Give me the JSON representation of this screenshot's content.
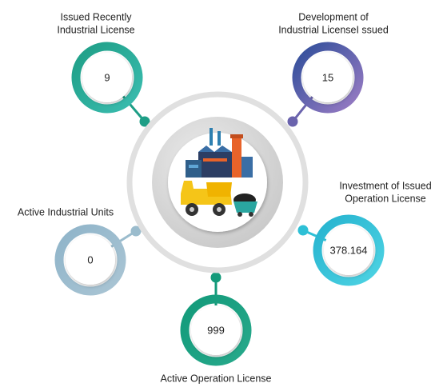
{
  "nodes": [
    {
      "label": [
        "Issued Recently",
        "Industrial License"
      ],
      "value": 9
    },
    {
      "label": [
        "Development of",
        "Industrial LicenseI ssued"
      ],
      "value": 15
    },
    {
      "label": [
        "Investment of Issued",
        "Operation License"
      ],
      "value": 378.164
    },
    {
      "label": [
        "Active Industrial Units"
      ],
      "value": 0
    },
    {
      "label": [
        "Active Operation License"
      ],
      "value": 999
    }
  ]
}
